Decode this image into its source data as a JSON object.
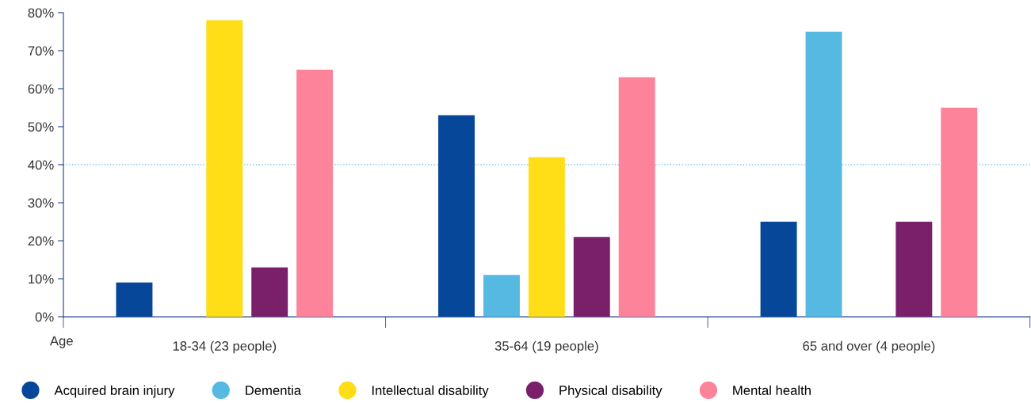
{
  "chart_data": {
    "type": "bar",
    "xlabel": "Age",
    "categories": [
      "18-34 (23 people)",
      "35-64 (19 people)",
      "65 and over (4 people)"
    ],
    "series": [
      {
        "name": "Acquired brain injury",
        "color": "#07479a",
        "values": [
          9,
          53,
          25
        ]
      },
      {
        "name": "Dementia",
        "color": "#55b9e2",
        "values": [
          0,
          11,
          75
        ]
      },
      {
        "name": "Intellectual disability",
        "color": "#ffdd17",
        "values": [
          78,
          42,
          0
        ]
      },
      {
        "name": "Physical disability",
        "color": "#7a1f6a",
        "values": [
          13,
          21,
          25
        ]
      },
      {
        "name": "Mental health",
        "color": "#fd839b",
        "values": [
          65,
          63,
          55
        ]
      }
    ],
    "ylim": [
      0,
      80
    ],
    "yticks": [
      {
        "value": 0,
        "label": "0%"
      },
      {
        "value": 10,
        "label": "10%"
      },
      {
        "value": 20,
        "label": "20%"
      },
      {
        "value": 30,
        "label": "30%"
      },
      {
        "value": 40,
        "label": "40%"
      },
      {
        "value": 50,
        "label": "50%"
      },
      {
        "value": 60,
        "label": "60%"
      },
      {
        "value": 70,
        "label": "70%"
      },
      {
        "value": 80,
        "label": "80%"
      }
    ],
    "ref_lines": [
      {
        "axis": "y",
        "value": 40,
        "color": "#7fc4ea",
        "line_style": "dotted"
      }
    ],
    "grid": false,
    "legend": "bottom"
  }
}
